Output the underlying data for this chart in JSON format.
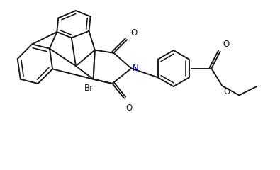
{
  "bg_color": "#ffffff",
  "line_color": "#1a1a1a",
  "N_color": "#0000bb",
  "line_width": 1.4,
  "figsize": [
    3.95,
    2.4
  ],
  "dpi": 100,
  "xlim": [
    0,
    9.5
  ],
  "ylim": [
    0,
    5.8
  ]
}
